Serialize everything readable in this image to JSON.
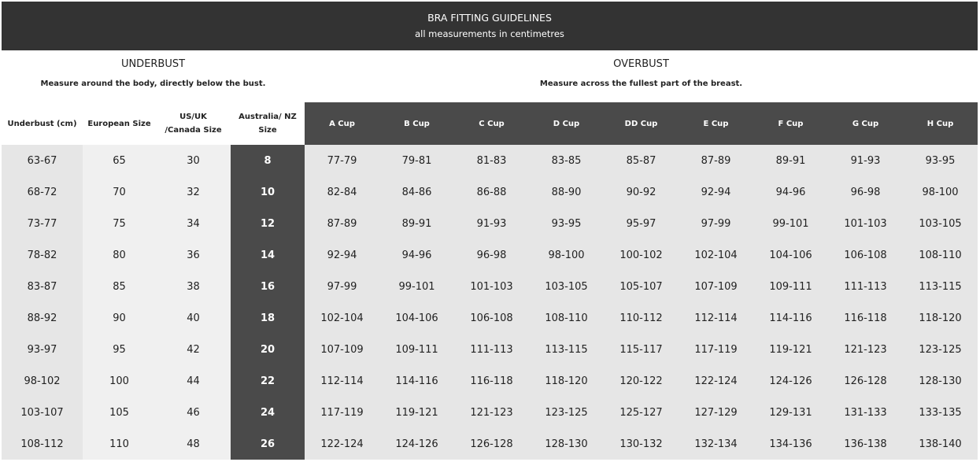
{
  "title": "BRA FITTING GUIDELINES",
  "subtitle": "all measurements in centimetres",
  "underbust": {
    "heading": "UNDERBUST",
    "desc": "Measure around the body, directly below the bust."
  },
  "overbust": {
    "heading": "OVERBUST",
    "desc": "Measure across the fullest part of the breast."
  },
  "headers": [
    "Underbust (cm)",
    "European Size",
    "US/UK /Canada Size",
    "Australia/ NZ Size",
    "A Cup",
    "B Cup",
    "C Cup",
    "D Cup",
    "DD Cup",
    "E Cup",
    "F Cup",
    "G Cup",
    "H Cup"
  ],
  "rows": [
    [
      "63-67",
      "65",
      "30",
      "8",
      "77-79",
      "79-81",
      "81-83",
      "83-85",
      "85-87",
      "87-89",
      "89-91",
      "91-93",
      "93-95"
    ],
    [
      "68-72",
      "70",
      "32",
      "10",
      "82-84",
      "84-86",
      "86-88",
      "88-90",
      "90-92",
      "92-94",
      "94-96",
      "96-98",
      "98-100"
    ],
    [
      "73-77",
      "75",
      "34",
      "12",
      "87-89",
      "89-91",
      "91-93",
      "93-95",
      "95-97",
      "97-99",
      "99-101",
      "101-103",
      "103-105"
    ],
    [
      "78-82",
      "80",
      "36",
      "14",
      "92-94",
      "94-96",
      "96-98",
      "98-100",
      "100-102",
      "102-104",
      "104-106",
      "106-108",
      "108-110"
    ],
    [
      "83-87",
      "85",
      "38",
      "16",
      "97-99",
      "99-101",
      "101-103",
      "103-105",
      "105-107",
      "107-109",
      "109-111",
      "111-113",
      "113-115"
    ],
    [
      "88-92",
      "90",
      "40",
      "18",
      "102-104",
      "104-106",
      "106-108",
      "108-110",
      "110-112",
      "112-114",
      "114-116",
      "116-118",
      "118-120"
    ],
    [
      "93-97",
      "95",
      "42",
      "20",
      "107-109",
      "109-111",
      "111-113",
      "113-115",
      "115-117",
      "117-119",
      "119-121",
      "121-123",
      "123-125"
    ],
    [
      "98-102",
      "100",
      "44",
      "22",
      "112-114",
      "114-116",
      "116-118",
      "118-120",
      "120-122",
      "122-124",
      "124-126",
      "126-128",
      "128-130"
    ],
    [
      "103-107",
      "105",
      "46",
      "24",
      "117-119",
      "119-121",
      "121-123",
      "123-125",
      "125-127",
      "127-129",
      "129-131",
      "131-133",
      "133-135"
    ],
    [
      "108-112",
      "110",
      "48",
      "26",
      "122-124",
      "124-126",
      "126-128",
      "128-130",
      "130-132",
      "132-134",
      "134-136",
      "136-138",
      "138-140"
    ]
  ]
}
